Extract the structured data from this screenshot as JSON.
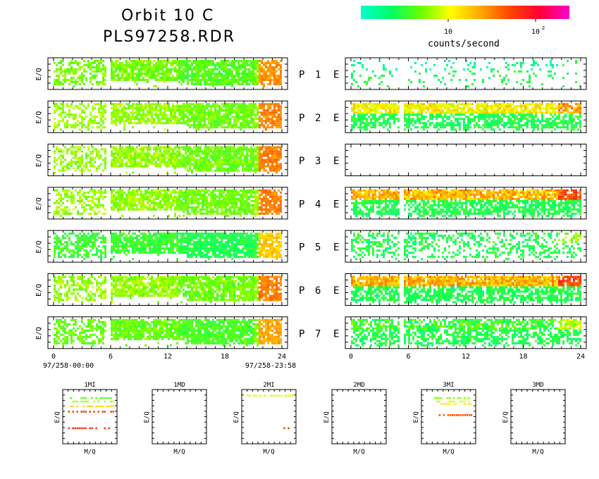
{
  "header": {
    "title": "Orbit 10 C",
    "subtitle": "PLS97258.RDR"
  },
  "colorbar": {
    "label": "counts/second",
    "ticks": [
      {
        "base": "10",
        "exp": ""
      },
      {
        "base": "10",
        "exp": "2"
      }
    ],
    "gradient": [
      "#00ffcc",
      "#00ff66",
      "#66ff00",
      "#ffff00",
      "#ffaa00",
      "#ff4400",
      "#ff0033",
      "#ff00cc"
    ]
  },
  "chart_data": [
    {
      "type": "heatmap",
      "name": "ion-panels",
      "ylabel": "E/Q",
      "x_ticks": [
        "0",
        "6",
        "12",
        "18",
        "24"
      ],
      "xlim": [
        0,
        24
      ],
      "time_start_label": "97/258-00:00",
      "time_end_label": "97/258-23:58",
      "data_gap_hours": [
        5.4,
        5.6
      ],
      "rows": [
        {
          "label": "P 1",
          "level": 0.3
        },
        {
          "label": "P 2",
          "level": 0.33
        },
        {
          "label": "P 3",
          "level": 0.33
        },
        {
          "label": "P 4",
          "level": 0.33
        },
        {
          "label": "P 5",
          "level": 0.22
        },
        {
          "label": "P 6",
          "level": 0.33
        },
        {
          "label": "P 7",
          "level": 0.28
        }
      ]
    },
    {
      "type": "heatmap",
      "name": "electron-panels",
      "x_ticks": [
        "0",
        "6",
        "12",
        "18",
        "24"
      ],
      "xlim": [
        0,
        24
      ],
      "data_gap_hours": [
        4.9,
        5.2
      ],
      "rows": [
        {
          "label": "E",
          "level": 0.08,
          "density": 0.25
        },
        {
          "label": "E",
          "level": 0.45,
          "density": 0.85
        },
        {
          "label": "E",
          "level": 0.0,
          "density": 0.0
        },
        {
          "label": "E",
          "level": 0.55,
          "density": 0.9
        },
        {
          "label": "E",
          "level": 0.18,
          "density": 0.45
        },
        {
          "label": "E",
          "level": 0.55,
          "density": 0.9
        },
        {
          "label": "E",
          "level": 0.22,
          "density": 0.75
        }
      ]
    },
    {
      "type": "scatter",
      "name": "mass-per-charge-panels",
      "xlabel": "M/Q",
      "ylabel": "E/Q",
      "panels": [
        {
          "label": "1MI",
          "marks": [
            [
              0.05,
              0.1,
              0.25
            ],
            [
              0.05,
              0.17,
              0.35
            ],
            [
              0.05,
              0.27,
              0.5
            ],
            [
              0.05,
              0.38,
              0.75
            ],
            [
              0.05,
              0.72,
              0.75
            ]
          ]
        },
        {
          "label": "1MD",
          "marks": []
        },
        {
          "label": "2MI",
          "marks": [
            [
              0.05,
              0.05,
              0.4
            ],
            [
              0.8,
              0.72,
              0.75
            ]
          ]
        },
        {
          "label": "2MD",
          "marks": []
        },
        {
          "label": "3MI",
          "marks": [
            [
              0.2,
              0.1,
              0.3
            ],
            [
              0.25,
              0.17,
              0.4
            ],
            [
              0.25,
              0.22,
              0.45
            ],
            [
              0.3,
              0.45,
              0.7
            ]
          ]
        },
        {
          "label": "3MD",
          "marks": []
        }
      ]
    }
  ]
}
